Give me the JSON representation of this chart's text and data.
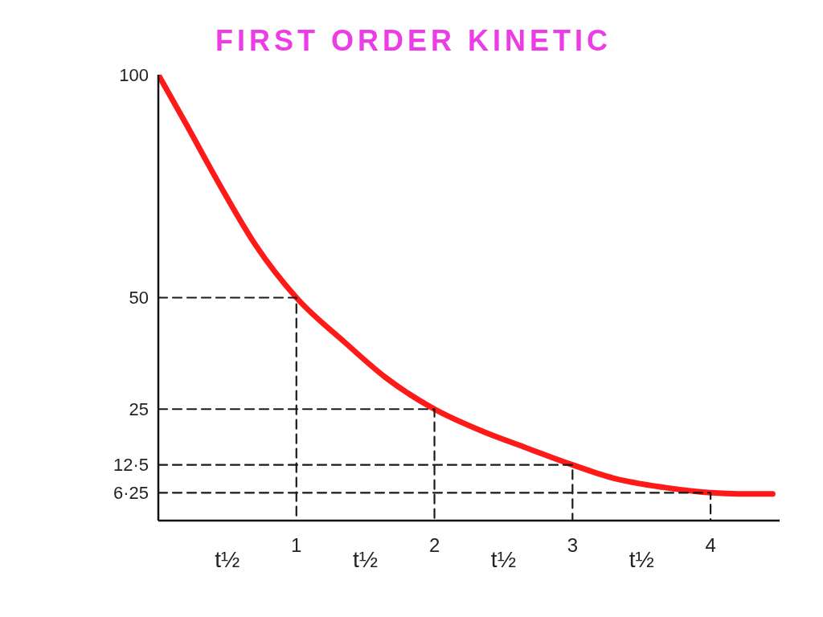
{
  "chart_data": {
    "type": "line",
    "title": "FIRST ORDER KINETIC",
    "xlim": [
      0,
      4.5
    ],
    "xticks": [
      1,
      2,
      3,
      4
    ],
    "ylim": [
      0,
      100
    ],
    "yticks": [
      {
        "value": 6.25,
        "label": "6·25"
      },
      {
        "value": 12.5,
        "label": "12·5"
      },
      25,
      50,
      100
    ],
    "series": [
      {
        "color": "#ff1a1a",
        "line_style": "solid",
        "x": [
          0,
          0.2,
          0.45,
          0.7,
          1,
          1.35,
          1.65,
          2,
          2.35,
          2.65,
          3,
          3.3,
          3.65,
          4,
          4.2,
          4.45
        ],
        "values": [
          100,
          89,
          75,
          62,
          50,
          40,
          32,
          25,
          20,
          16.5,
          12.5,
          9.5,
          7.5,
          6.25,
          6,
          6
        ]
      },
      {
        "color": "#1a1a1a",
        "line_style": "dashed",
        "x": [
          0,
          1,
          1
        ],
        "values": [
          50,
          50,
          0
        ]
      },
      {
        "color": "#1a1a1a",
        "line_style": "dashed",
        "x": [
          0,
          2,
          2
        ],
        "values": [
          25,
          25,
          0
        ]
      },
      {
        "color": "#1a1a1a",
        "line_style": "dashed",
        "x": [
          0,
          3,
          3
        ],
        "values": [
          12.5,
          12.5,
          0
        ]
      },
      {
        "color": "#1a1a1a",
        "line_style": "dashed",
        "x": [
          0,
          4,
          4
        ],
        "values": [
          6.25,
          6.25,
          0
        ]
      }
    ],
    "annotations": [
      "t½",
      "t½",
      "t½",
      "t½"
    ]
  }
}
